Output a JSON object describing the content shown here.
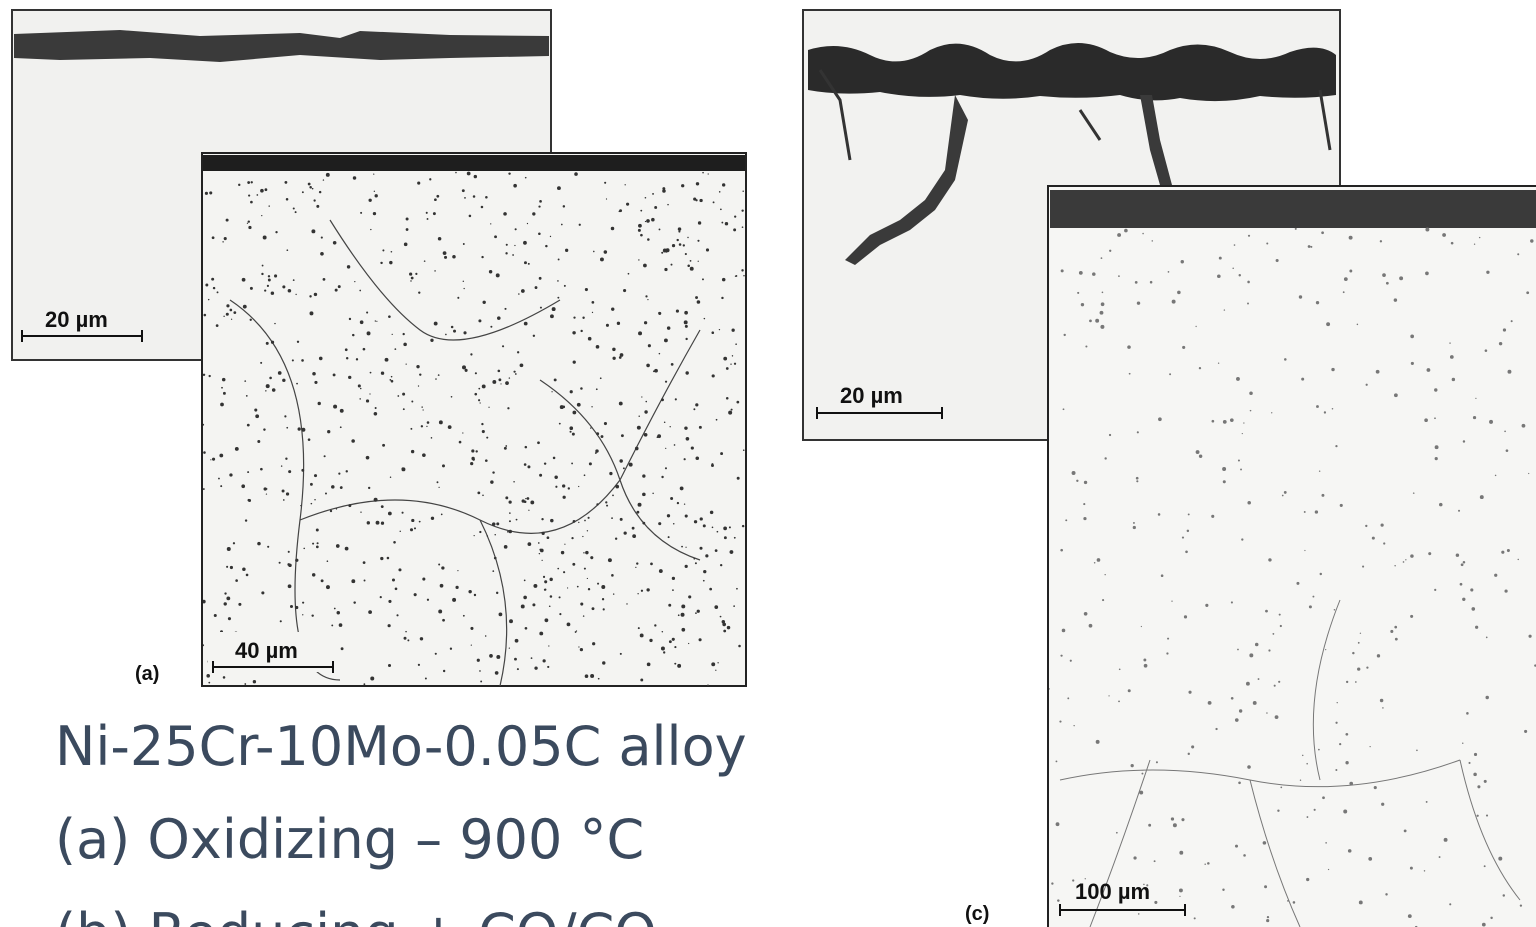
{
  "figure": {
    "panel_a_top": {
      "scale_bar": "20 µm"
    },
    "panel_a_bottom": {
      "scale_bar": "40 µm",
      "label": "(a)"
    },
    "panel_c_top": {
      "scale_bar": "20 µm"
    },
    "panel_c_bottom": {
      "scale_bar": "100 µm",
      "label": "(c)"
    }
  },
  "caption": {
    "lines": [
      "Ni-25Cr-10Mo-0.05C alloy",
      "(a) Oxidizing – 900 °C",
      "(b) Reducing + CO/CO"
    ]
  }
}
